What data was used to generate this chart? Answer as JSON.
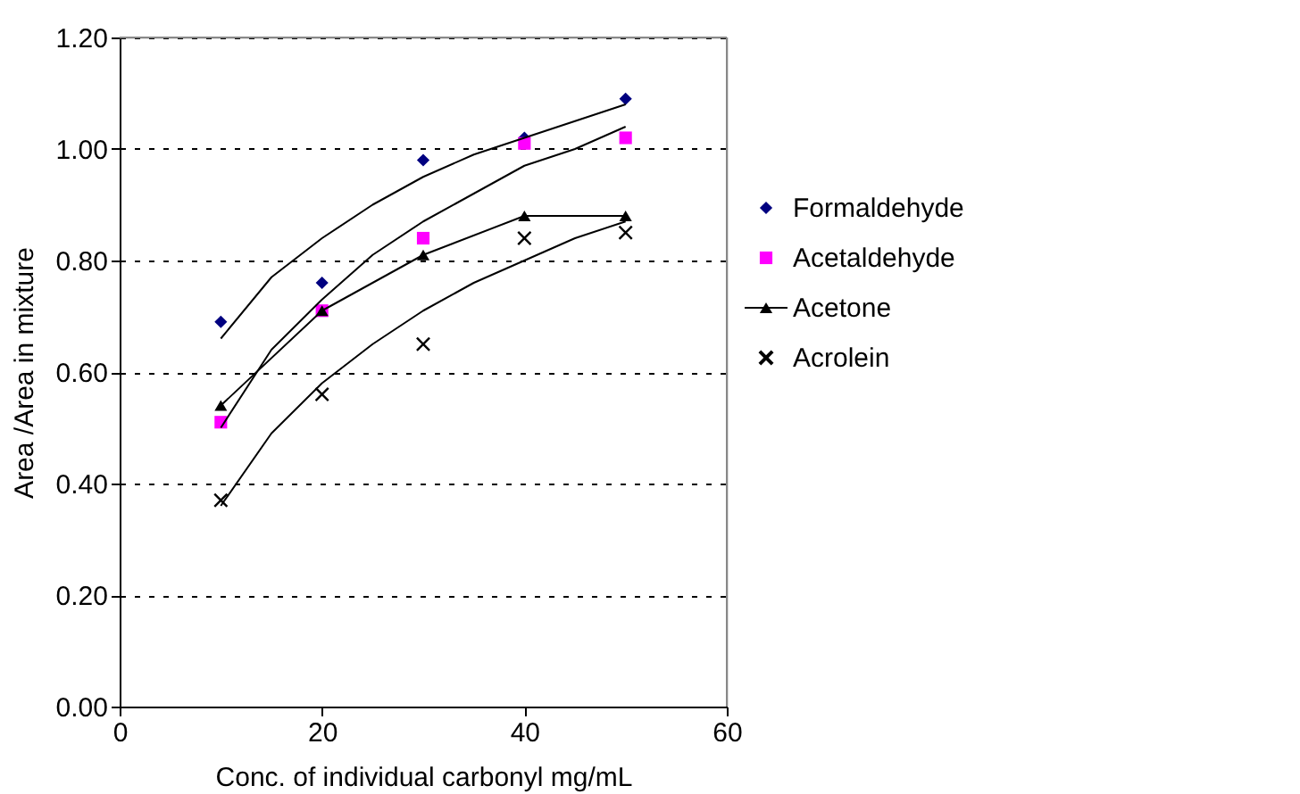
{
  "chart_data": {
    "type": "scatter",
    "xlabel": "Conc. of individual carbonyl mg/mL",
    "ylabel": "Area /Area in mixture",
    "x": [
      10,
      20,
      30,
      40,
      50
    ],
    "xlim": [
      0,
      60
    ],
    "xticks": [
      0,
      20,
      40,
      60
    ],
    "ylim": [
      0,
      1.2
    ],
    "yticks": [
      {
        "value": 0,
        "label": "0.00"
      },
      {
        "value": 0.2,
        "label": "0.20"
      },
      {
        "value": 0.4,
        "label": "0.40"
      },
      {
        "value": 0.6,
        "label": "0.60"
      },
      {
        "value": 0.8,
        "label": "0.80"
      },
      {
        "value": 1.0,
        "label": "1.00"
      },
      {
        "value": 1.2,
        "label": "1.20"
      }
    ],
    "grid": "y",
    "legend": "right",
    "series": [
      {
        "name": "Formaldehyde",
        "type": "scatter",
        "marker": "diamond",
        "color": "#000080",
        "values": [
          0.69,
          0.76,
          0.98,
          1.02,
          1.09
        ]
      },
      {
        "name": "Acetaldehyde",
        "type": "scatter",
        "marker": "square",
        "color": "#ff00ff",
        "values": [
          0.51,
          0.71,
          0.84,
          1.01,
          1.02
        ]
      },
      {
        "name": "Acetone",
        "type": "line",
        "marker": "triangle",
        "color": "#000000",
        "values": [
          0.54,
          0.71,
          0.81,
          0.88,
          0.88
        ]
      },
      {
        "name": "Acrolein",
        "type": "scatter",
        "marker": "cross",
        "color": "#000000",
        "values": [
          0.37,
          0.56,
          0.65,
          0.84,
          0.85
        ]
      },
      {
        "type": "line",
        "marker": "none",
        "color": "#000000",
        "x": [
          10,
          15,
          20,
          25,
          30,
          35,
          40,
          45,
          50
        ],
        "values": [
          0.66,
          0.77,
          0.84,
          0.9,
          0.95,
          0.99,
          1.02,
          1.05,
          1.08
        ]
      },
      {
        "type": "line",
        "marker": "none",
        "color": "#000000",
        "x": [
          10,
          15,
          20,
          25,
          30,
          35,
          40,
          45,
          50
        ],
        "values": [
          0.5,
          0.64,
          0.73,
          0.81,
          0.87,
          0.92,
          0.97,
          1.0,
          1.04
        ]
      },
      {
        "type": "line",
        "marker": "none",
        "color": "#000000",
        "x": [
          10,
          15,
          20,
          25,
          30,
          35,
          40,
          45,
          50
        ],
        "values": [
          0.36,
          0.49,
          0.58,
          0.65,
          0.71,
          0.76,
          0.8,
          0.84,
          0.87
        ]
      }
    ]
  }
}
